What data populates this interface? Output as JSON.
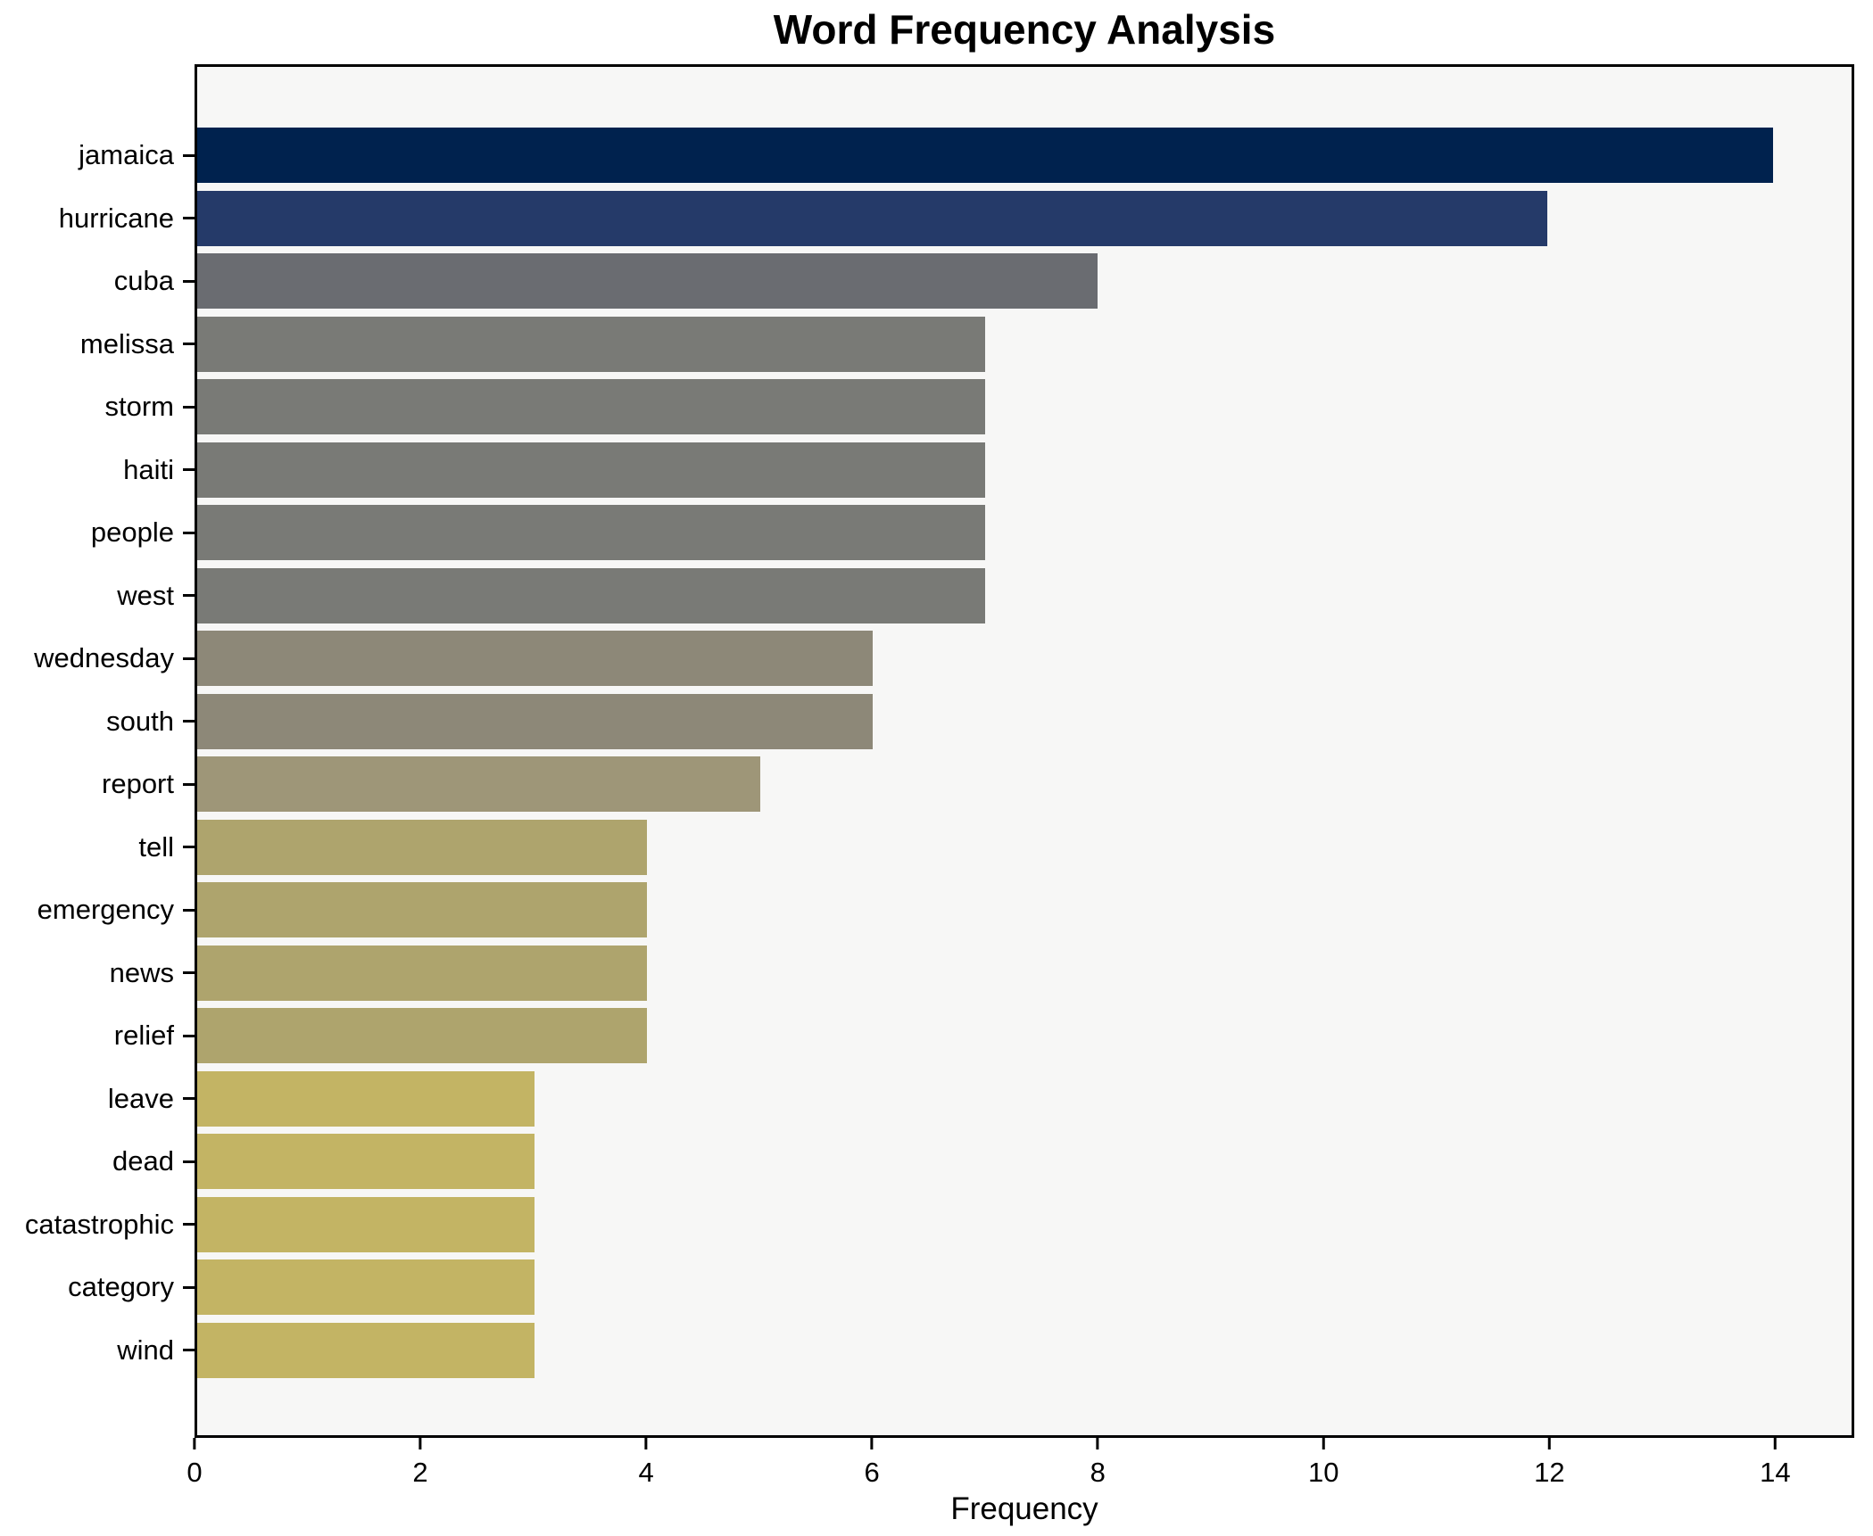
{
  "figure": {
    "title": "Word Frequency Analysis",
    "xlabel": "Frequency"
  },
  "chart_data": {
    "type": "bar",
    "orientation": "horizontal",
    "title": "Word Frequency Analysis",
    "xlabel": "Frequency",
    "ylabel": "",
    "categories": [
      "jamaica",
      "hurricane",
      "cuba",
      "melissa",
      "storm",
      "haiti",
      "people",
      "west",
      "wednesday",
      "south",
      "report",
      "tell",
      "emergency",
      "news",
      "relief",
      "leave",
      "dead",
      "catastrophic",
      "category",
      "wind"
    ],
    "values": [
      14,
      12,
      8,
      7,
      7,
      7,
      7,
      7,
      6,
      6,
      5,
      4,
      4,
      4,
      4,
      3,
      3,
      3,
      3,
      3
    ],
    "bar_colors": [
      "#00224e",
      "#253a69",
      "#6a6c71",
      "#797a76",
      "#797a76",
      "#797a76",
      "#797a76",
      "#797a76",
      "#8d8878",
      "#8d8878",
      "#9e9678",
      "#aea46d",
      "#aea46d",
      "#aea46d",
      "#aea46d",
      "#c3b464",
      "#c3b464",
      "#c3b464",
      "#c3b464",
      "#c3b464"
    ],
    "xlim": [
      0,
      14.7
    ],
    "xticks": [
      0,
      2,
      4,
      6,
      8,
      10,
      12,
      14
    ],
    "grid": false,
    "legend": null,
    "plot_background": "#f7f7f6",
    "figure_background": "#ffffff",
    "spine_color": "#000000"
  }
}
